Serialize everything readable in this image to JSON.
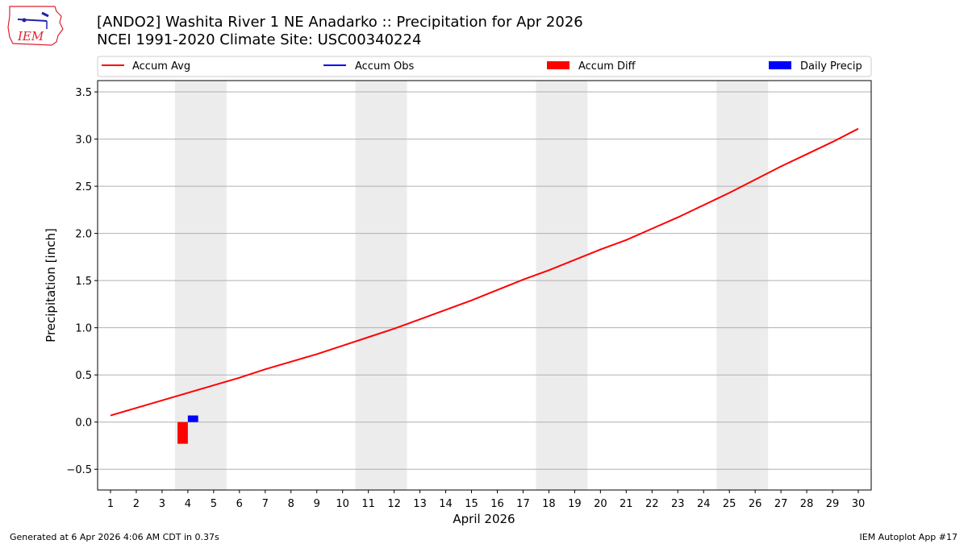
{
  "header": {
    "title_line1": "[ANDO2] Washita River 1 NE Anadarko :: Precipitation for Apr 2026",
    "title_line2": "NCEI 1991-2020 Climate Site: USC00340224",
    "logo_text": "IEM"
  },
  "footer": {
    "generated": "Generated at 6 Apr 2026 4:06 AM CDT in 0.37s",
    "app": "IEM Autoplot App #17"
  },
  "chart_data": {
    "type": "line",
    "title": "[ANDO2] Washita River 1 NE Anadarko :: Precipitation for Apr 2026",
    "subtitle": "NCEI 1991-2020 Climate Site: USC00340224",
    "xlabel": "April 2026",
    "ylabel": "Precipitation [inch]",
    "ylim": [
      -0.72,
      3.62
    ],
    "xlim": [
      0.5,
      30.5
    ],
    "yticks": [
      -0.5,
      0.0,
      0.5,
      1.0,
      1.5,
      2.0,
      2.5,
      3.0,
      3.5
    ],
    "ytick_labels": [
      "−0.5",
      "0.0",
      "0.5",
      "1.0",
      "1.5",
      "2.0",
      "2.5",
      "3.0",
      "3.5"
    ],
    "x": [
      1,
      2,
      3,
      4,
      5,
      6,
      7,
      8,
      9,
      10,
      11,
      12,
      13,
      14,
      15,
      16,
      17,
      18,
      19,
      20,
      21,
      22,
      23,
      24,
      25,
      26,
      27,
      28,
      29,
      30
    ],
    "grid": "horizontal",
    "legend_position": "top",
    "weekend_shading": [
      [
        3.5,
        5.5
      ],
      [
        10.5,
        12.5
      ],
      [
        17.5,
        19.5
      ],
      [
        24.5,
        26.5
      ]
    ],
    "series": [
      {
        "name": "Accum Avg",
        "kind": "line",
        "color": "#ff0000",
        "values": [
          0.07,
          0.15,
          0.23,
          0.31,
          0.39,
          0.47,
          0.56,
          0.64,
          0.72,
          0.81,
          0.9,
          0.99,
          1.09,
          1.19,
          1.29,
          1.4,
          1.51,
          1.61,
          1.72,
          1.83,
          1.93,
          2.05,
          2.17,
          2.3,
          2.43,
          2.57,
          2.71,
          2.84,
          2.97,
          3.11
        ]
      },
      {
        "name": "Accum Obs",
        "kind": "line",
        "color": "#0000ff",
        "values": [
          0.0,
          0.0,
          0.0,
          0.07
        ]
      },
      {
        "name": "Accum Diff",
        "kind": "bar",
        "color": "#ff0000",
        "values": [
          null,
          null,
          null,
          -0.23
        ]
      },
      {
        "name": "Daily Precip",
        "kind": "bar",
        "color": "#0000ff",
        "values": [
          null,
          null,
          null,
          0.07
        ]
      }
    ]
  }
}
